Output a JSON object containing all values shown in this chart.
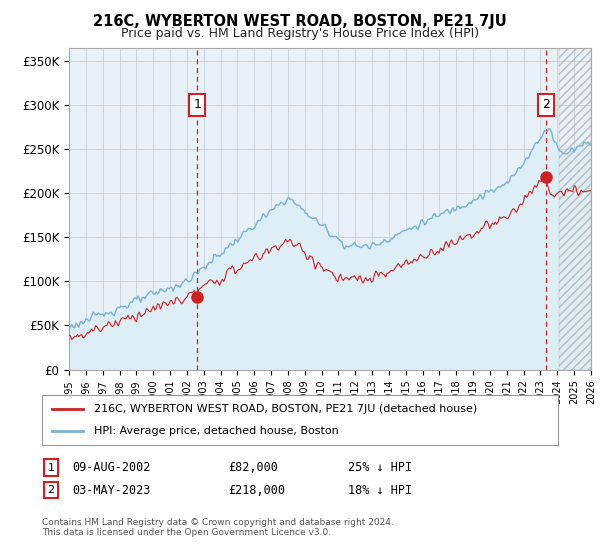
{
  "title": "216C, WYBERTON WEST ROAD, BOSTON, PE21 7JU",
  "subtitle": "Price paid vs. HM Land Registry's House Price Index (HPI)",
  "ylabel_ticks": [
    "£0",
    "£50K",
    "£100K",
    "£150K",
    "£200K",
    "£250K",
    "£300K",
    "£350K"
  ],
  "ytick_values": [
    0,
    50000,
    100000,
    150000,
    200000,
    250000,
    300000,
    350000
  ],
  "ylim": [
    0,
    365000
  ],
  "hpi_color": "#7ab3d4",
  "hpi_fill_color": "#ddeef7",
  "price_color": "#cc2222",
  "marker_color": "#cc2222",
  "sale1": {
    "date": "09-AUG-2002",
    "price": 82000,
    "label": "1",
    "year": 2002.61
  },
  "sale2": {
    "date": "03-MAY-2023",
    "price": 218000,
    "label": "2",
    "year": 2023.33
  },
  "legend_line1": "216C, WYBERTON WEST ROAD, BOSTON, PE21 7JU (detached house)",
  "legend_line2": "HPI: Average price, detached house, Boston",
  "footer": "Contains HM Land Registry data © Crown copyright and database right 2024.\nThis data is licensed under the Open Government Licence v3.0.",
  "background_color": "#ffffff",
  "plot_bg_color": "#e8f0f8",
  "grid_color": "#c0ccd8",
  "vline_color": "#cc2222",
  "box_color": "#cc2222",
  "hatch_color": "#bbbbbb"
}
